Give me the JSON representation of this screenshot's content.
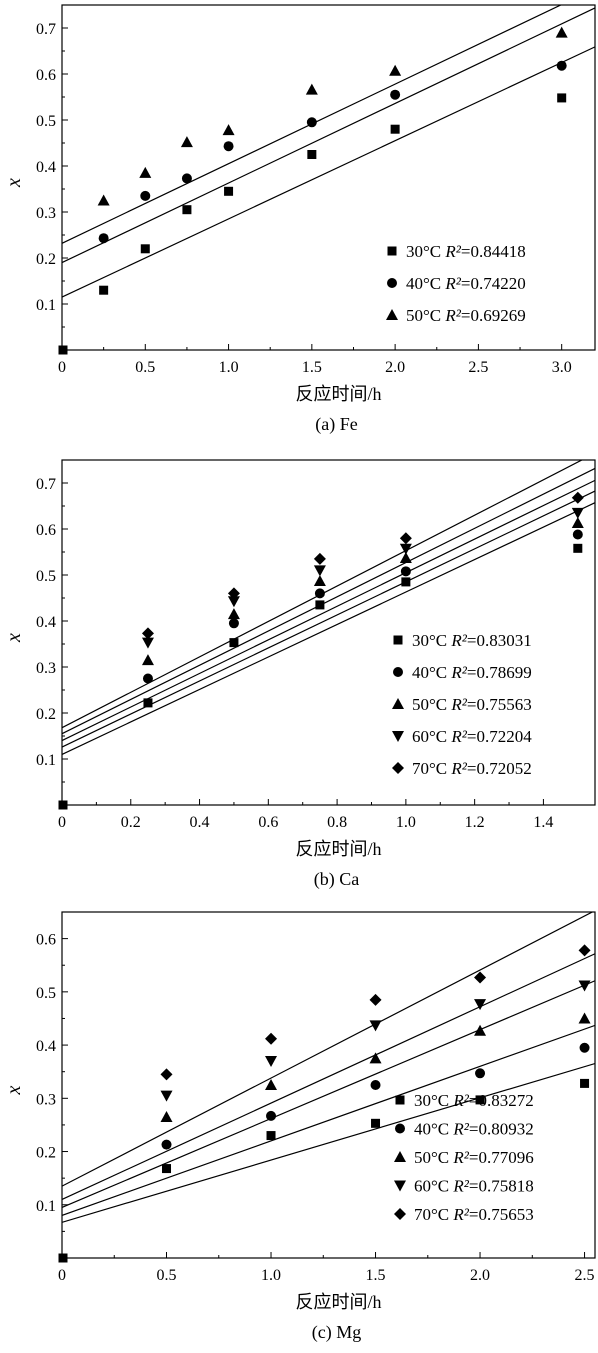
{
  "chart_data": [
    {
      "type": "scatter",
      "caption": "(a) Fe",
      "xlabel": "反应时间/h",
      "ylabel": "x",
      "xlim": [
        0,
        3.2
      ],
      "ylim": [
        0,
        0.75
      ],
      "xticks": [
        {
          "v": 0,
          "label": "0"
        },
        {
          "v": 0.5,
          "label": "0.5"
        },
        {
          "v": 1.0,
          "label": "1.0"
        },
        {
          "v": 1.5,
          "label": "1.5"
        },
        {
          "v": 2.0,
          "label": "2.0"
        },
        {
          "v": 2.5,
          "label": "2.5"
        },
        {
          "v": 3.0,
          "label": "3.0"
        }
      ],
      "yticks": [
        {
          "v": 0.1,
          "label": "0.1"
        },
        {
          "v": 0.2,
          "label": "0.2"
        },
        {
          "v": 0.3,
          "label": "0.3"
        },
        {
          "v": 0.4,
          "label": "0.4"
        },
        {
          "v": 0.5,
          "label": "0.5"
        },
        {
          "v": 0.6,
          "label": "0.6"
        },
        {
          "v": 0.7,
          "label": "0.7"
        }
      ],
      "origin_point": [
        0,
        0
      ],
      "legend_position": "bottom-right",
      "series": [
        {
          "name": "30°C",
          "r2_label": "R²",
          "r2_value": "=0.84418",
          "marker": "square",
          "points": [
            [
              0.25,
              0.13
            ],
            [
              0.5,
              0.22
            ],
            [
              0.75,
              0.305
            ],
            [
              1.0,
              0.345
            ],
            [
              1.5,
              0.425
            ],
            [
              2.0,
              0.48
            ],
            [
              3.0,
              0.548
            ]
          ],
          "fit": [
            0.115,
            0.17
          ]
        },
        {
          "name": "40°C",
          "r2_label": "R²",
          "r2_value": "=0.74220",
          "marker": "circle",
          "points": [
            [
              0.25,
              0.243
            ],
            [
              0.5,
              0.335
            ],
            [
              0.75,
              0.373
            ],
            [
              1.0,
              0.443
            ],
            [
              1.5,
              0.495
            ],
            [
              2.0,
              0.555
            ],
            [
              3.0,
              0.618
            ]
          ],
          "fit": [
            0.19,
            0.173
          ]
        },
        {
          "name": "50°C",
          "r2_label": "R²",
          "r2_value": "=0.69269",
          "marker": "triangle-up",
          "points": [
            [
              0.25,
              0.325
            ],
            [
              0.5,
              0.385
            ],
            [
              0.75,
              0.452
            ],
            [
              1.0,
              0.478
            ],
            [
              1.5,
              0.566
            ],
            [
              2.0,
              0.607
            ],
            [
              3.0,
              0.69
            ]
          ],
          "fit": [
            0.232,
            0.173
          ]
        }
      ]
    },
    {
      "type": "scatter",
      "caption": "(b) Ca",
      "xlabel": "反应时间/h",
      "ylabel": "x",
      "xlim": [
        0,
        1.55
      ],
      "ylim": [
        0,
        0.75
      ],
      "xticks": [
        {
          "v": 0,
          "label": "0"
        },
        {
          "v": 0.2,
          "label": "0.2"
        },
        {
          "v": 0.4,
          "label": "0.4"
        },
        {
          "v": 0.6,
          "label": "0.6"
        },
        {
          "v": 0.8,
          "label": "0.8"
        },
        {
          "v": 1.0,
          "label": "1.0"
        },
        {
          "v": 1.2,
          "label": "1.2"
        },
        {
          "v": 1.4,
          "label": "1.4"
        }
      ],
      "yticks": [
        {
          "v": 0.1,
          "label": "0.1"
        },
        {
          "v": 0.2,
          "label": "0.2"
        },
        {
          "v": 0.3,
          "label": "0.3"
        },
        {
          "v": 0.4,
          "label": "0.4"
        },
        {
          "v": 0.5,
          "label": "0.5"
        },
        {
          "v": 0.6,
          "label": "0.6"
        },
        {
          "v": 0.7,
          "label": "0.7"
        }
      ],
      "origin_point": [
        0,
        0
      ],
      "legend_position": "bottom-right",
      "series": [
        {
          "name": "30°C",
          "r2_label": "R²",
          "r2_value": "=0.83031",
          "marker": "square",
          "points": [
            [
              0.25,
              0.222
            ],
            [
              0.5,
              0.353
            ],
            [
              0.75,
              0.435
            ],
            [
              1.0,
              0.485
            ],
            [
              1.5,
              0.558
            ]
          ],
          "fit": [
            0.11,
            0.353
          ]
        },
        {
          "name": "40°C",
          "r2_label": "R²",
          "r2_value": "=0.78699",
          "marker": "circle",
          "points": [
            [
              0.25,
              0.275
            ],
            [
              0.5,
              0.395
            ],
            [
              0.75,
              0.46
            ],
            [
              1.0,
              0.508
            ],
            [
              1.5,
              0.588
            ]
          ],
          "fit": [
            0.126,
            0.359
          ]
        },
        {
          "name": "50°C",
          "r2_label": "R²",
          "r2_value": "=0.75563",
          "marker": "triangle-up",
          "points": [
            [
              0.25,
              0.315
            ],
            [
              0.5,
              0.415
            ],
            [
              0.75,
              0.487
            ],
            [
              1.0,
              0.537
            ],
            [
              1.5,
              0.613
            ]
          ],
          "fit": [
            0.14,
            0.365
          ]
        },
        {
          "name": "60°C",
          "r2_label": "R²",
          "r2_value": "=0.72204",
          "marker": "triangle-down",
          "points": [
            [
              0.25,
              0.353
            ],
            [
              0.5,
              0.443
            ],
            [
              0.75,
              0.51
            ],
            [
              1.0,
              0.557
            ],
            [
              1.5,
              0.635
            ]
          ],
          "fit": [
            0.155,
            0.372
          ]
        },
        {
          "name": "70°C",
          "r2_label": "R²",
          "r2_value": "=0.72052",
          "marker": "diamond",
          "points": [
            [
              0.25,
              0.373
            ],
            [
              0.5,
              0.46
            ],
            [
              0.75,
              0.535
            ],
            [
              1.0,
              0.58
            ],
            [
              1.5,
              0.668
            ]
          ],
          "fit": [
            0.168,
            0.385
          ]
        }
      ]
    },
    {
      "type": "scatter",
      "caption": "(c) Mg",
      "xlabel": "反应时间/h",
      "ylabel": "x",
      "xlim": [
        0,
        2.55
      ],
      "ylim": [
        0,
        0.65
      ],
      "xticks": [
        {
          "v": 0,
          "label": "0"
        },
        {
          "v": 0.5,
          "label": "0.5"
        },
        {
          "v": 1.0,
          "label": "1.0"
        },
        {
          "v": 1.5,
          "label": "1.5"
        },
        {
          "v": 2.0,
          "label": "2.0"
        },
        {
          "v": 2.5,
          "label": "2.5"
        }
      ],
      "yticks": [
        {
          "v": 0.1,
          "label": "0.1"
        },
        {
          "v": 0.2,
          "label": "0.2"
        },
        {
          "v": 0.3,
          "label": "0.3"
        },
        {
          "v": 0.4,
          "label": "0.4"
        },
        {
          "v": 0.5,
          "label": "0.5"
        },
        {
          "v": 0.6,
          "label": "0.6"
        }
      ],
      "origin_point": [
        0,
        0
      ],
      "legend_position": "bottom-right",
      "series": [
        {
          "name": "30°C",
          "r2_label": "R²",
          "r2_value": "=0.83272",
          "marker": "square",
          "points": [
            [
              0.5,
              0.168
            ],
            [
              1.0,
              0.23
            ],
            [
              1.5,
              0.253
            ],
            [
              2.0,
              0.297
            ],
            [
              2.5,
              0.328
            ]
          ],
          "fit": [
            0.067,
            0.117
          ]
        },
        {
          "name": "40°C",
          "r2_label": "R²",
          "r2_value": "=0.80932",
          "marker": "circle",
          "points": [
            [
              0.5,
              0.213
            ],
            [
              1.0,
              0.267
            ],
            [
              1.5,
              0.325
            ],
            [
              2.0,
              0.347
            ],
            [
              2.5,
              0.395
            ]
          ],
          "fit": [
            0.08,
            0.14
          ]
        },
        {
          "name": "50°C",
          "r2_label": "R²",
          "r2_value": "=0.77096",
          "marker": "triangle-up",
          "points": [
            [
              0.5,
              0.265
            ],
            [
              1.0,
              0.325
            ],
            [
              1.5,
              0.375
            ],
            [
              2.0,
              0.427
            ],
            [
              2.5,
              0.45
            ]
          ],
          "fit": [
            0.095,
            0.167
          ]
        },
        {
          "name": "60°C",
          "r2_label": "R²",
          "r2_value": "=0.75818",
          "marker": "triangle-down",
          "points": [
            [
              0.5,
              0.305
            ],
            [
              1.0,
              0.37
            ],
            [
              1.5,
              0.437
            ],
            [
              2.0,
              0.477
            ],
            [
              2.5,
              0.512
            ]
          ],
          "fit": [
            0.11,
            0.181
          ]
        },
        {
          "name": "70°C",
          "r2_label": "R²",
          "r2_value": "=0.75653",
          "marker": "diamond",
          "points": [
            [
              0.5,
              0.345
            ],
            [
              1.0,
              0.412
            ],
            [
              1.5,
              0.485
            ],
            [
              2.0,
              0.527
            ],
            [
              2.5,
              0.578
            ]
          ],
          "fit": [
            0.135,
            0.203
          ]
        }
      ]
    }
  ]
}
